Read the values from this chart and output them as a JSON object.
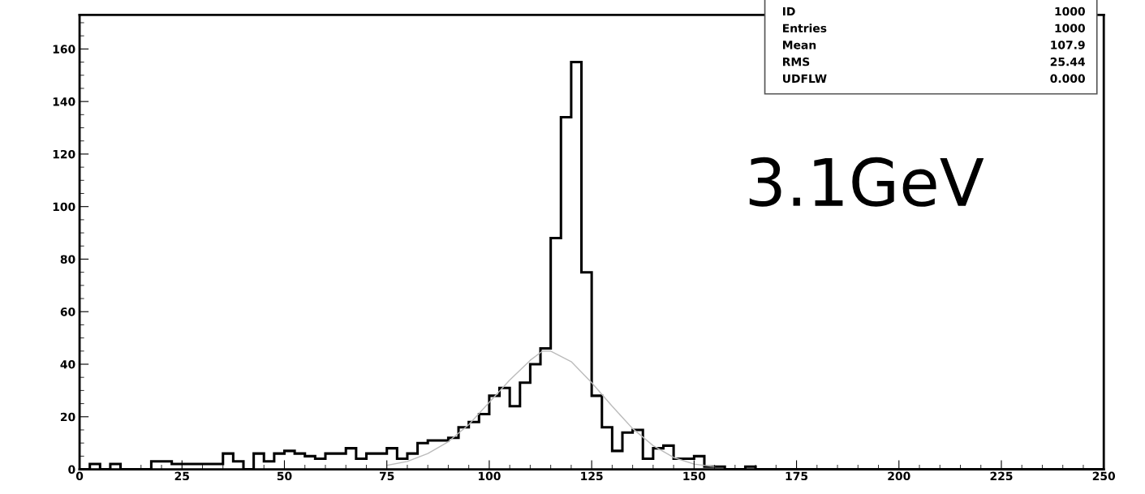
{
  "chart_data": {
    "type": "histogram",
    "bins": [
      0,
      2.5,
      5,
      7.5,
      10,
      12.5,
      15,
      17.5,
      20,
      22.5,
      25,
      27.5,
      30,
      32.5,
      35,
      37.5,
      40,
      42.5,
      45,
      47.5,
      50,
      52.5,
      55,
      57.5,
      60,
      62.5,
      65,
      67.5,
      70,
      72.5,
      75,
      77.5,
      80,
      82.5,
      85,
      87.5,
      90,
      92.5,
      95,
      97.5,
      100,
      102.5,
      105,
      107.5,
      110,
      112.5,
      115,
      117.5,
      120,
      122.5,
      125,
      127.5,
      130,
      132.5,
      135,
      137.5,
      140,
      142.5,
      145,
      147.5,
      150,
      152.5,
      155,
      157.5,
      160,
      162.5,
      165,
      167.5,
      170,
      172.5,
      175,
      177.5,
      180,
      182.5,
      185,
      187.5,
      190,
      192.5,
      195,
      197.5,
      200,
      202.5,
      205,
      207.5,
      210,
      212.5,
      215,
      217.5,
      220,
      222.5,
      225,
      227.5,
      230,
      232.5,
      235,
      237.5,
      240,
      242.5,
      245,
      247.5,
      250
    ],
    "values": [
      0,
      2,
      0,
      2,
      0,
      0,
      0,
      3,
      3,
      2,
      2,
      2,
      2,
      2,
      6,
      3,
      0,
      6,
      3,
      6,
      7,
      6,
      5,
      4,
      6,
      6,
      8,
      4,
      6,
      6,
      8,
      4,
      6,
      10,
      11,
      11,
      12,
      16,
      18,
      21,
      28,
      31,
      24,
      33,
      40,
      46,
      88,
      134,
      155,
      75,
      28,
      16,
      7,
      14,
      15,
      4,
      8,
      9,
      4,
      4,
      5,
      1,
      1,
      0,
      0,
      1,
      0,
      0,
      0,
      0,
      0,
      0,
      0,
      0,
      0,
      0,
      0,
      0,
      0,
      0,
      0,
      0,
      0,
      0,
      0,
      0,
      0,
      0,
      0,
      0,
      0,
      0,
      0,
      0,
      0,
      0,
      0,
      0,
      0,
      0
    ],
    "color": "#000000",
    "series": [
      {
        "type": "line",
        "color": "#bbbbbb",
        "x": [
          75,
          80,
          85,
          90,
          95,
          100,
          105,
          110,
          113,
          115,
          120,
          125,
          130,
          135,
          140,
          145,
          150,
          155
        ],
        "values": [
          1.5,
          3,
          6,
          10.5,
          17,
          25.5,
          34,
          41.5,
          45,
          45,
          41,
          33,
          24,
          15.5,
          9,
          4.5,
          2,
          1
        ]
      }
    ],
    "xlim": [
      0,
      250
    ],
    "xticks": [
      0,
      25,
      50,
      75,
      100,
      125,
      150,
      175,
      200,
      225,
      250
    ],
    "ylim": [
      0,
      173
    ],
    "yticks": [
      0,
      20,
      40,
      60,
      80,
      100,
      120,
      140,
      160
    ],
    "annotations": [
      "ID",
      "1000",
      "Entries",
      "1000",
      "Mean",
      "107.9",
      "RMS",
      "25.44",
      "UDFLW",
      "0.000",
      "3.1GeV"
    ],
    "grid": false,
    "legend": false
  }
}
